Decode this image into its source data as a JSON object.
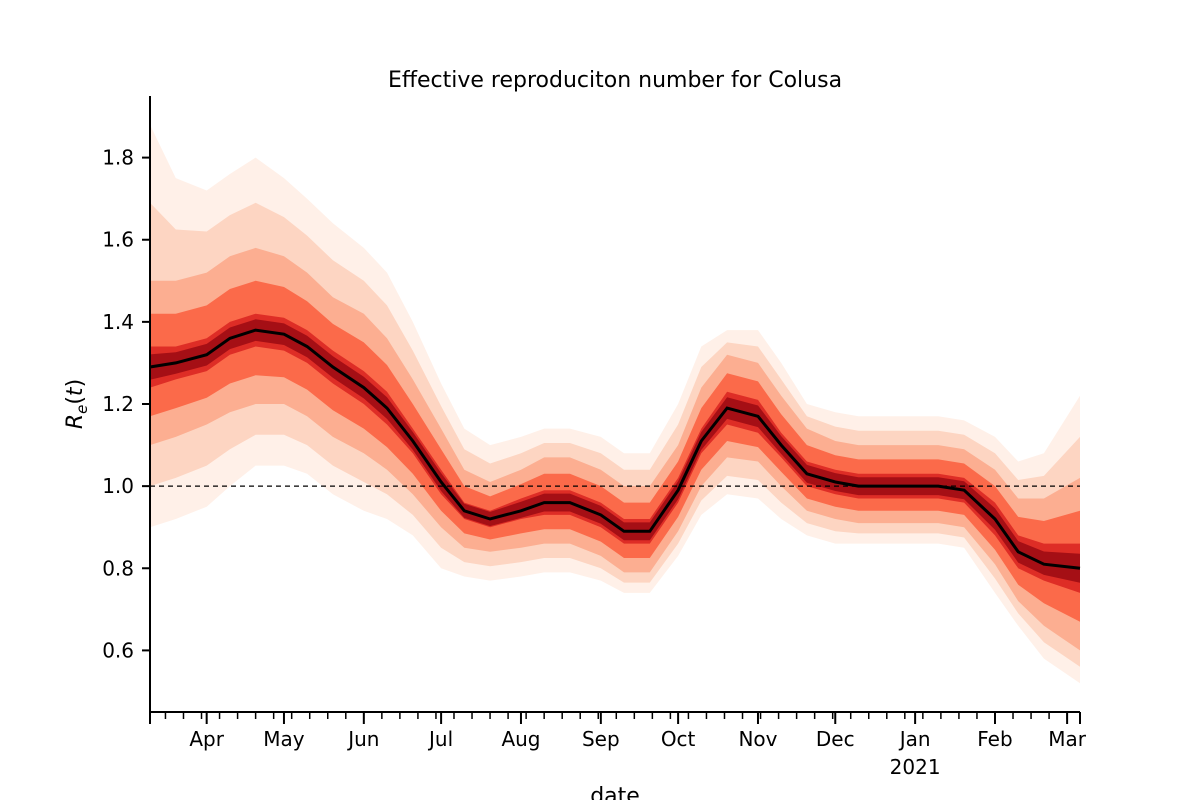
{
  "chart_data": {
    "type": "area",
    "title": "Effective reproduciton number for Colusa",
    "xlabel": "date",
    "ylabel": "R_e(t)",
    "xlim": [
      "2020-03-10",
      "2021-03-06"
    ],
    "ylim": [
      0.45,
      1.95
    ],
    "y_ticks": [
      0.6,
      0.8,
      1.0,
      1.2,
      1.4,
      1.6,
      1.8
    ],
    "y_tick_labels": [
      "0.6",
      "0.8",
      "1.0",
      "1.2",
      "1.4",
      "1.6",
      "1.8"
    ],
    "x_ticks": [
      {
        "date": "2020-04-01",
        "label": "Apr"
      },
      {
        "date": "2020-05-01",
        "label": "May"
      },
      {
        "date": "2020-06-01",
        "label": "Jun"
      },
      {
        "date": "2020-07-01",
        "label": "Jul"
      },
      {
        "date": "2020-08-01",
        "label": "Aug"
      },
      {
        "date": "2020-09-01",
        "label": "Sep"
      },
      {
        "date": "2020-10-01",
        "label": "Oct"
      },
      {
        "date": "2020-11-01",
        "label": "Nov"
      },
      {
        "date": "2020-12-01",
        "label": "Dec"
      },
      {
        "date": "2021-01-01",
        "label": "Jan",
        "sublabel": "2021"
      },
      {
        "date": "2021-02-01",
        "label": "Feb"
      },
      {
        "date": "2021-03-01",
        "label": "Mar"
      }
    ],
    "reference_line": {
      "y": 1.0,
      "style": "dashed"
    },
    "grid": false,
    "colormap": "Reds",
    "series": [
      {
        "line_color": "#000000",
        "x": [
          "2020-03-10",
          "2020-03-20",
          "2020-04-01",
          "2020-04-10",
          "2020-04-20",
          "2020-05-01",
          "2020-05-10",
          "2020-05-20",
          "2020-06-01",
          "2020-06-10",
          "2020-06-20",
          "2020-07-01",
          "2020-07-10",
          "2020-07-20",
          "2020-08-01",
          "2020-08-10",
          "2020-08-20",
          "2020-09-01",
          "2020-09-10",
          "2020-09-20",
          "2020-10-01",
          "2020-10-10",
          "2020-10-20",
          "2020-11-01",
          "2020-11-10",
          "2020-11-20",
          "2020-12-01",
          "2020-12-10",
          "2020-12-20",
          "2021-01-01",
          "2021-01-10",
          "2021-01-20",
          "2021-02-01",
          "2021-02-10",
          "2021-02-20",
          "2021-03-06"
        ],
        "median": [
          1.29,
          1.3,
          1.32,
          1.36,
          1.38,
          1.37,
          1.34,
          1.29,
          1.24,
          1.19,
          1.11,
          1.01,
          0.94,
          0.92,
          0.94,
          0.96,
          0.96,
          0.93,
          0.89,
          0.89,
          0.99,
          1.11,
          1.19,
          1.17,
          1.1,
          1.03,
          1.01,
          1.0,
          1.0,
          1.0,
          1.0,
          0.99,
          0.92,
          0.84,
          0.81,
          0.8
        ],
        "ci_50": [
          [
            1.24,
            1.34
          ],
          [
            1.26,
            1.34
          ],
          [
            1.28,
            1.36
          ],
          [
            1.32,
            1.4
          ],
          [
            1.34,
            1.42
          ],
          [
            1.33,
            1.41
          ],
          [
            1.3,
            1.38
          ],
          [
            1.25,
            1.33
          ],
          [
            1.2,
            1.28
          ],
          [
            1.15,
            1.23
          ],
          [
            1.08,
            1.14
          ],
          [
            0.98,
            1.04
          ],
          [
            0.92,
            0.96
          ],
          [
            0.9,
            0.94
          ],
          [
            0.92,
            0.97
          ],
          [
            0.93,
            0.99
          ],
          [
            0.93,
            0.99
          ],
          [
            0.9,
            0.96
          ],
          [
            0.86,
            0.92
          ],
          [
            0.86,
            0.92
          ],
          [
            0.96,
            1.02
          ],
          [
            1.08,
            1.14
          ],
          [
            1.15,
            1.23
          ],
          [
            1.13,
            1.21
          ],
          [
            1.07,
            1.13
          ],
          [
            1.0,
            1.06
          ],
          [
            0.98,
            1.04
          ],
          [
            0.97,
            1.03
          ],
          [
            0.97,
            1.03
          ],
          [
            0.97,
            1.03
          ],
          [
            0.97,
            1.03
          ],
          [
            0.96,
            1.02
          ],
          [
            0.88,
            0.96
          ],
          [
            0.8,
            0.88
          ],
          [
            0.77,
            0.86
          ],
          [
            0.74,
            0.86
          ]
        ],
        "ci_95": [
          [
            1.1,
            1.5
          ],
          [
            1.12,
            1.5
          ],
          [
            1.15,
            1.52
          ],
          [
            1.18,
            1.56
          ],
          [
            1.2,
            1.58
          ],
          [
            1.2,
            1.56
          ],
          [
            1.17,
            1.52
          ],
          [
            1.12,
            1.46
          ],
          [
            1.08,
            1.42
          ],
          [
            1.04,
            1.36
          ],
          [
            0.98,
            1.26
          ],
          [
            0.9,
            1.14
          ],
          [
            0.85,
            1.04
          ],
          [
            0.84,
            1.01
          ],
          [
            0.85,
            1.04
          ],
          [
            0.86,
            1.07
          ],
          [
            0.86,
            1.07
          ],
          [
            0.83,
            1.04
          ],
          [
            0.79,
            1.0
          ],
          [
            0.79,
            1.0
          ],
          [
            0.89,
            1.1
          ],
          [
            1.0,
            1.24
          ],
          [
            1.07,
            1.32
          ],
          [
            1.06,
            1.3
          ],
          [
            1.0,
            1.22
          ],
          [
            0.94,
            1.14
          ],
          [
            0.92,
            1.11
          ],
          [
            0.91,
            1.1
          ],
          [
            0.91,
            1.1
          ],
          [
            0.91,
            1.1
          ],
          [
            0.91,
            1.1
          ],
          [
            0.9,
            1.09
          ],
          [
            0.81,
            1.04
          ],
          [
            0.72,
            0.97
          ],
          [
            0.66,
            0.97
          ],
          [
            0.6,
            1.02
          ]
        ],
        "ci_outer": [
          [
            0.9,
            1.88
          ],
          [
            0.92,
            1.75
          ],
          [
            0.95,
            1.72
          ],
          [
            1.0,
            1.76
          ],
          [
            1.05,
            1.8
          ],
          [
            1.05,
            1.75
          ],
          [
            1.03,
            1.7
          ],
          [
            0.98,
            1.64
          ],
          [
            0.94,
            1.58
          ],
          [
            0.92,
            1.52
          ],
          [
            0.88,
            1.4
          ],
          [
            0.8,
            1.25
          ],
          [
            0.78,
            1.14
          ],
          [
            0.77,
            1.1
          ],
          [
            0.78,
            1.12
          ],
          [
            0.79,
            1.14
          ],
          [
            0.79,
            1.14
          ],
          [
            0.77,
            1.12
          ],
          [
            0.74,
            1.08
          ],
          [
            0.74,
            1.08
          ],
          [
            0.83,
            1.2
          ],
          [
            0.93,
            1.34
          ],
          [
            0.98,
            1.38
          ],
          [
            0.97,
            1.38
          ],
          [
            0.92,
            1.3
          ],
          [
            0.88,
            1.2
          ],
          [
            0.86,
            1.18
          ],
          [
            0.86,
            1.17
          ],
          [
            0.86,
            1.17
          ],
          [
            0.86,
            1.17
          ],
          [
            0.86,
            1.17
          ],
          [
            0.85,
            1.16
          ],
          [
            0.74,
            1.12
          ],
          [
            0.66,
            1.06
          ],
          [
            0.58,
            1.08
          ],
          [
            0.52,
            1.22
          ]
        ]
      }
    ]
  }
}
